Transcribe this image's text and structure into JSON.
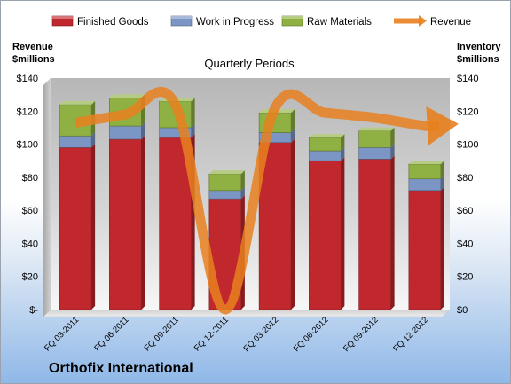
{
  "company_name": "Orthofix International",
  "chart_data": {
    "type": "bar",
    "stacked": true,
    "title": "Quarterly Periods",
    "ylabel_left": "Revenue $millions",
    "ylabel_left_lines": [
      "Revenue",
      "$millions"
    ],
    "ylabel_right": "Inventory $millions",
    "ylabel_right_lines": [
      "Inventory",
      "$millions"
    ],
    "ylim": [
      0,
      140
    ],
    "yticks": [
      0,
      20,
      40,
      60,
      80,
      100,
      120,
      140
    ],
    "ytick_labels_left": [
      "$-",
      "$20",
      "$40",
      "$60",
      "$80",
      "$100",
      "$120",
      "$140"
    ],
    "ytick_labels_right": [
      "$0",
      "$20",
      "$40",
      "$60",
      "$80",
      "$100",
      "$120",
      "$140"
    ],
    "categories": [
      "FQ 03-2011",
      "FQ 06-2011",
      "FQ 09-2011",
      "FQ 12-2011",
      "FQ 03-2012",
      "FQ 06-2012",
      "FQ 09-2012",
      "FQ 12-2012"
    ],
    "series": [
      {
        "name": "Finished Goods",
        "type": "bar",
        "color": "#c0282d",
        "values": [
          98,
          103,
          104,
          67,
          101,
          90,
          91,
          72
        ]
      },
      {
        "name": "Work in Progress",
        "type": "bar",
        "color": "#7b95c4",
        "values": [
          7,
          8,
          6,
          5,
          6,
          6,
          7,
          7
        ]
      },
      {
        "name": "Raw Materials",
        "type": "bar",
        "color": "#8fb043",
        "values": [
          19,
          17,
          16,
          10,
          12,
          8,
          10,
          9
        ]
      },
      {
        "name": "Revenue",
        "type": "line",
        "color": "#e8801e",
        "values": [
          113,
          118,
          124,
          0,
          122,
          119,
          116,
          111
        ]
      }
    ],
    "legend_position": "top",
    "grid": false
  }
}
